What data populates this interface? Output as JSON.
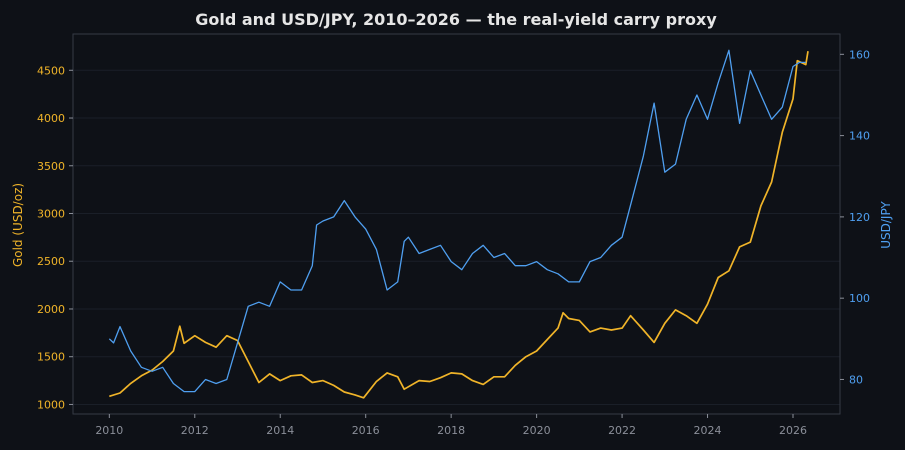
{
  "chart_data": {
    "type": "line",
    "title": "Gold and USD/JPY, 2010–2026 — the real-yield carry proxy",
    "xlabel": "",
    "x_ticks": [
      2010,
      2012,
      2014,
      2016,
      2018,
      2020,
      2022,
      2024,
      2026
    ],
    "xlim": [
      2009.15,
      2027.1
    ],
    "y_left": {
      "label": "Gold (USD/oz)",
      "ylim": [
        900,
        4880
      ],
      "ticks": [
        1000,
        1500,
        2000,
        2500,
        3000,
        3500,
        4000,
        4500
      ],
      "color": "#f0b429"
    },
    "y_right": {
      "label": "USD/JPY",
      "ylim": [
        71.5,
        165
      ],
      "ticks": [
        80,
        100,
        120,
        140,
        160
      ],
      "color": "#4f9ff0"
    },
    "grid": true,
    "series": [
      {
        "name": "Gold",
        "axis": "left",
        "color": "#f0b429",
        "points": [
          [
            2010.0,
            1085
          ],
          [
            2010.25,
            1120
          ],
          [
            2010.5,
            1220
          ],
          [
            2010.75,
            1300
          ],
          [
            2011.0,
            1360
          ],
          [
            2011.25,
            1450
          ],
          [
            2011.5,
            1560
          ],
          [
            2011.65,
            1820
          ],
          [
            2011.75,
            1640
          ],
          [
            2012.0,
            1720
          ],
          [
            2012.25,
            1650
          ],
          [
            2012.5,
            1600
          ],
          [
            2012.75,
            1720
          ],
          [
            2013.0,
            1670
          ],
          [
            2013.25,
            1450
          ],
          [
            2013.5,
            1230
          ],
          [
            2013.75,
            1320
          ],
          [
            2014.0,
            1250
          ],
          [
            2014.25,
            1300
          ],
          [
            2014.5,
            1310
          ],
          [
            2014.75,
            1230
          ],
          [
            2015.0,
            1250
          ],
          [
            2015.25,
            1200
          ],
          [
            2015.5,
            1130
          ],
          [
            2015.75,
            1100
          ],
          [
            2015.95,
            1070
          ],
          [
            2016.25,
            1240
          ],
          [
            2016.5,
            1330
          ],
          [
            2016.75,
            1290
          ],
          [
            2016.9,
            1160
          ],
          [
            2017.25,
            1250
          ],
          [
            2017.5,
            1240
          ],
          [
            2017.75,
            1280
          ],
          [
            2018.0,
            1330
          ],
          [
            2018.25,
            1320
          ],
          [
            2018.5,
            1250
          ],
          [
            2018.75,
            1210
          ],
          [
            2019.0,
            1290
          ],
          [
            2019.25,
            1290
          ],
          [
            2019.5,
            1410
          ],
          [
            2019.75,
            1500
          ],
          [
            2020.0,
            1560
          ],
          [
            2020.25,
            1680
          ],
          [
            2020.5,
            1800
          ],
          [
            2020.62,
            1960
          ],
          [
            2020.75,
            1900
          ],
          [
            2021.0,
            1880
          ],
          [
            2021.25,
            1760
          ],
          [
            2021.5,
            1800
          ],
          [
            2021.75,
            1780
          ],
          [
            2022.0,
            1800
          ],
          [
            2022.2,
            1930
          ],
          [
            2022.5,
            1780
          ],
          [
            2022.75,
            1650
          ],
          [
            2023.0,
            1850
          ],
          [
            2023.25,
            1990
          ],
          [
            2023.5,
            1930
          ],
          [
            2023.75,
            1850
          ],
          [
            2024.0,
            2050
          ],
          [
            2024.25,
            2330
          ],
          [
            2024.5,
            2400
          ],
          [
            2024.75,
            2650
          ],
          [
            2025.0,
            2700
          ],
          [
            2025.25,
            3080
          ],
          [
            2025.5,
            3330
          ],
          [
            2025.75,
            3850
          ],
          [
            2026.0,
            4200
          ],
          [
            2026.1,
            4600
          ],
          [
            2026.3,
            4560
          ],
          [
            2026.35,
            4700
          ]
        ]
      },
      {
        "name": "USD/JPY",
        "axis": "right",
        "color": "#4f9ff0",
        "points": [
          [
            2010.0,
            90
          ],
          [
            2010.1,
            89
          ],
          [
            2010.25,
            93
          ],
          [
            2010.5,
            87
          ],
          [
            2010.75,
            83
          ],
          [
            2011.0,
            82
          ],
          [
            2011.25,
            83
          ],
          [
            2011.5,
            79
          ],
          [
            2011.75,
            77
          ],
          [
            2012.0,
            77
          ],
          [
            2012.25,
            80
          ],
          [
            2012.5,
            79
          ],
          [
            2012.75,
            80
          ],
          [
            2013.0,
            89
          ],
          [
            2013.25,
            98
          ],
          [
            2013.5,
            99
          ],
          [
            2013.75,
            98
          ],
          [
            2014.0,
            104
          ],
          [
            2014.25,
            102
          ],
          [
            2014.5,
            102
          ],
          [
            2014.75,
            108
          ],
          [
            2014.85,
            118
          ],
          [
            2015.0,
            119
          ],
          [
            2015.25,
            120
          ],
          [
            2015.5,
            124
          ],
          [
            2015.75,
            120
          ],
          [
            2016.0,
            117
          ],
          [
            2016.25,
            112
          ],
          [
            2016.5,
            102
          ],
          [
            2016.75,
            104
          ],
          [
            2016.9,
            114
          ],
          [
            2017.0,
            115
          ],
          [
            2017.25,
            111
          ],
          [
            2017.5,
            112
          ],
          [
            2017.75,
            113
          ],
          [
            2018.0,
            109
          ],
          [
            2018.25,
            107
          ],
          [
            2018.5,
            111
          ],
          [
            2018.75,
            113
          ],
          [
            2019.0,
            110
          ],
          [
            2019.25,
            111
          ],
          [
            2019.5,
            108
          ],
          [
            2019.75,
            108
          ],
          [
            2020.0,
            109
          ],
          [
            2020.25,
            107
          ],
          [
            2020.5,
            106
          ],
          [
            2020.75,
            104
          ],
          [
            2021.0,
            104
          ],
          [
            2021.25,
            109
          ],
          [
            2021.5,
            110
          ],
          [
            2021.75,
            113
          ],
          [
            2022.0,
            115
          ],
          [
            2022.25,
            125
          ],
          [
            2022.5,
            135
          ],
          [
            2022.75,
            148
          ],
          [
            2023.0,
            131
          ],
          [
            2023.25,
            133
          ],
          [
            2023.5,
            144
          ],
          [
            2023.75,
            150
          ],
          [
            2024.0,
            144
          ],
          [
            2024.25,
            153
          ],
          [
            2024.5,
            161
          ],
          [
            2024.75,
            143
          ],
          [
            2025.0,
            156
          ],
          [
            2025.25,
            150
          ],
          [
            2025.5,
            144
          ],
          [
            2025.75,
            147
          ],
          [
            2026.0,
            157
          ],
          [
            2026.15,
            158
          ],
          [
            2026.3,
            158
          ]
        ]
      }
    ]
  }
}
